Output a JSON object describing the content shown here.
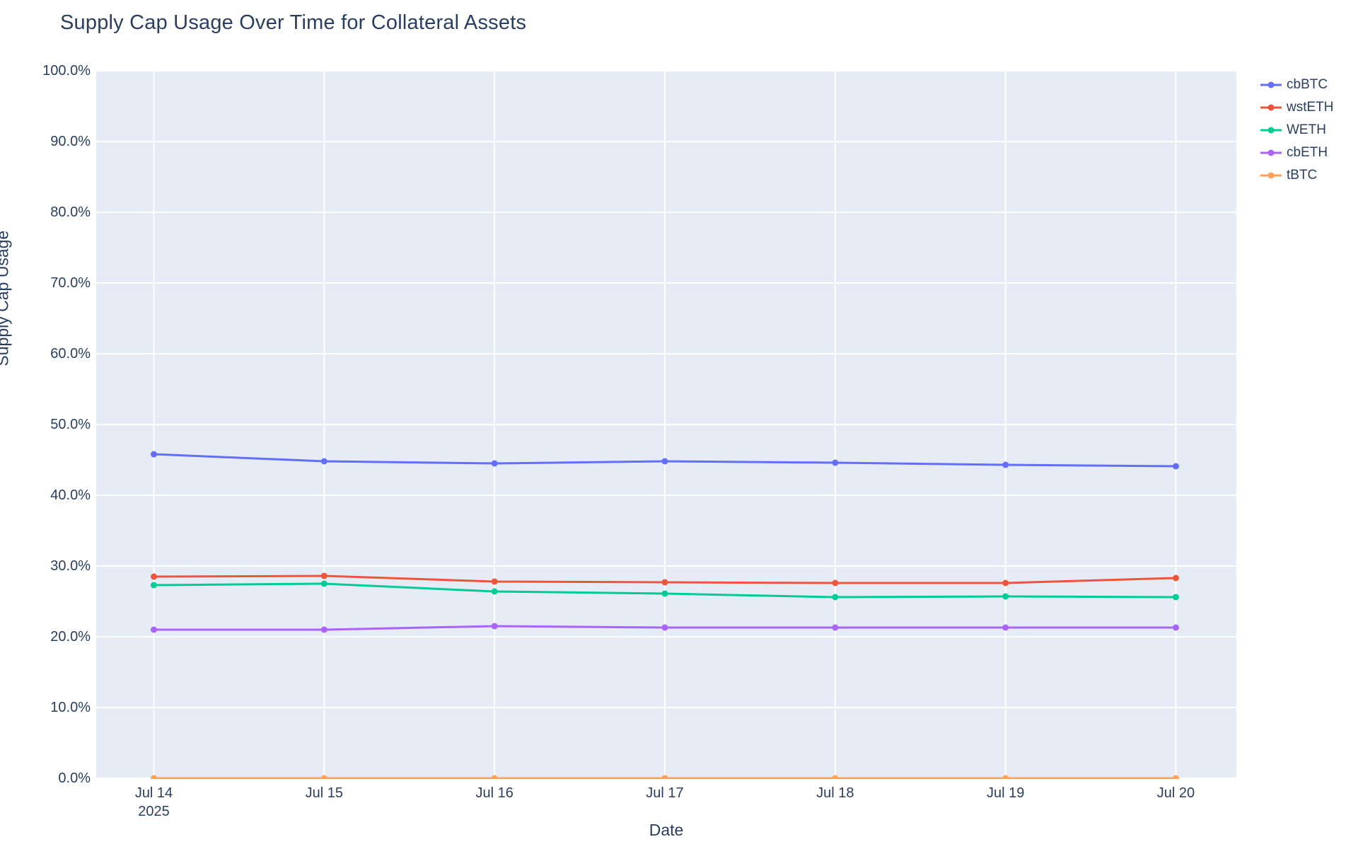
{
  "chart_data": {
    "type": "line",
    "title": "Supply Cap Usage Over Time for Collateral Assets",
    "xlabel": "Date",
    "ylabel": "Supply Cap Usage",
    "categories": [
      "Jul 14",
      "Jul 15",
      "Jul 16",
      "Jul 17",
      "Jul 18",
      "Jul 19",
      "Jul 20"
    ],
    "x_first_tick_sublabel": "2025",
    "y_tick_labels": [
      "0.0%",
      "10.0%",
      "20.0%",
      "30.0%",
      "40.0%",
      "50.0%",
      "60.0%",
      "70.0%",
      "80.0%",
      "90.0%",
      "100.0%"
    ],
    "ylim": [
      0,
      100
    ],
    "grid": true,
    "legend_position": "outside-top-right",
    "series": [
      {
        "name": "cbBTC",
        "color": "#636EFA",
        "values": [
          45.8,
          44.8,
          44.5,
          44.8,
          44.6,
          44.3,
          44.1
        ]
      },
      {
        "name": "wstETH",
        "color": "#EF553B",
        "values": [
          28.5,
          28.6,
          27.8,
          27.7,
          27.6,
          27.6,
          28.3
        ]
      },
      {
        "name": "WETH",
        "color": "#00CC96",
        "values": [
          27.3,
          27.5,
          26.4,
          26.1,
          25.6,
          25.7,
          25.6
        ]
      },
      {
        "name": "cbETH",
        "color": "#AB63FA",
        "values": [
          21.0,
          21.0,
          21.5,
          21.3,
          21.3,
          21.3,
          21.3
        ]
      },
      {
        "name": "tBTC",
        "color": "#FFA15A",
        "values": [
          0.0,
          0.0,
          0.0,
          0.0,
          0.0,
          0.0,
          0.0
        ]
      }
    ]
  },
  "style": {
    "plot_bg": "#E5ECF6",
    "paper_bg": "#FFFFFF",
    "grid_color": "#FFFFFF",
    "text_color": "#2A3F5F"
  }
}
